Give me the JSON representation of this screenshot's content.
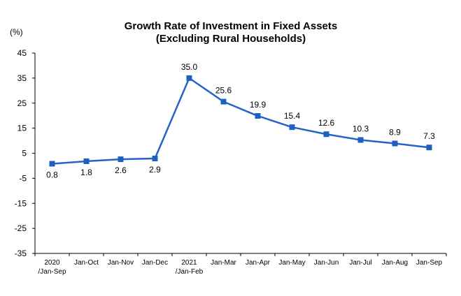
{
  "chart_data": {
    "type": "line",
    "title": "Growth Rate of Investment in Fixed Assets",
    "subtitle": "(Excluding Rural Households)",
    "unit_label": "(%)",
    "ylim": [
      -35,
      45
    ],
    "yticks": [
      "45",
      "35",
      "25",
      "15",
      "5",
      "-5",
      "-15",
      "-25",
      "-35"
    ],
    "ytick_values": [
      45,
      35,
      25,
      15,
      5,
      -5,
      -15,
      -25,
      -35
    ],
    "categories": [
      [
        "2020",
        "/Jan-Sep"
      ],
      [
        "Jan-Oct"
      ],
      [
        "Jan-Nov"
      ],
      [
        "Jan-Dec"
      ],
      [
        "2021",
        "/Jan-Feb"
      ],
      [
        "Jan-Mar"
      ],
      [
        "Jan-Apr"
      ],
      [
        "Jan-May"
      ],
      [
        "Jan-Jun"
      ],
      [
        "Jan-Jul"
      ],
      [
        "Jan-Aug"
      ],
      [
        "Jan-Sep"
      ]
    ],
    "values": [
      0.8,
      1.8,
      2.6,
      2.9,
      35.0,
      25.6,
      19.9,
      15.4,
      12.6,
      10.3,
      8.9,
      7.3
    ],
    "data_labels": [
      "0.8",
      "1.8",
      "2.6",
      "2.9",
      "35.0",
      "25.6",
      "19.9",
      "15.4",
      "12.6",
      "10.3",
      "8.9",
      "7.3"
    ],
    "label_position": [
      "below",
      "below",
      "below",
      "below",
      "above",
      "above",
      "above",
      "above",
      "above",
      "above",
      "above",
      "above"
    ],
    "grid": false,
    "legend": "none",
    "line_color": "#2464C8",
    "marker_color": "#1F5FC0"
  }
}
